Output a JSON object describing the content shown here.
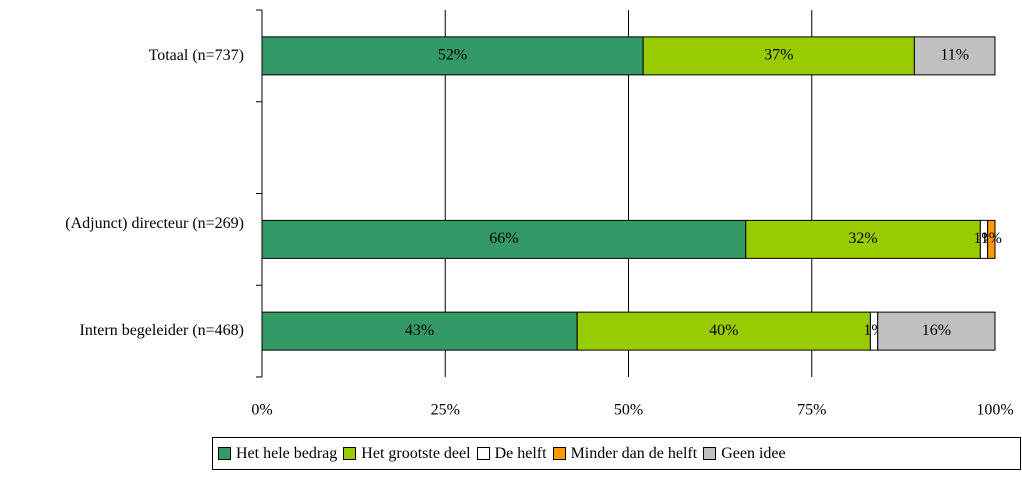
{
  "chart_data": {
    "type": "stacked-barh",
    "categories": [
      "Totaal (n=737)",
      null,
      "(Adjunct) directeur (n=269)",
      "Intern begeleider (n=468)"
    ],
    "series": [
      {
        "name": "Het hele bedrag",
        "color": "#339966",
        "values": [
          52,
          null,
          66,
          43
        ],
        "value_labels": [
          "52%",
          null,
          "66%",
          "43%"
        ]
      },
      {
        "name": "Het grootste deel",
        "color": "#99cc00",
        "values": [
          37,
          null,
          32,
          40
        ],
        "value_labels": [
          "37%",
          null,
          "32%",
          "40%"
        ]
      },
      {
        "name": "De helft",
        "color": "#ffffff",
        "values": [
          0,
          null,
          1,
          1
        ],
        "value_labels": [
          null,
          null,
          "1%",
          "1%"
        ]
      },
      {
        "name": "Minder dan de helft",
        "color": "#ff9900",
        "values": [
          0,
          null,
          1,
          0
        ],
        "value_labels": [
          null,
          null,
          "1%",
          null
        ]
      },
      {
        "name": "Geen idee",
        "color": "#c0c0c0",
        "values": [
          11,
          null,
          0,
          16
        ],
        "value_labels": [
          "11%",
          null,
          null,
          "16%"
        ]
      }
    ],
    "xlim": [
      0,
      100
    ],
    "xticks": [
      {
        "value": 0,
        "label": "0%"
      },
      {
        "value": 25,
        "label": "25%"
      },
      {
        "value": 50,
        "label": "50%"
      },
      {
        "value": 75,
        "label": "75%"
      },
      {
        "value": 100,
        "label": "100%"
      }
    ],
    "grid": true,
    "legend": "bottom"
  }
}
